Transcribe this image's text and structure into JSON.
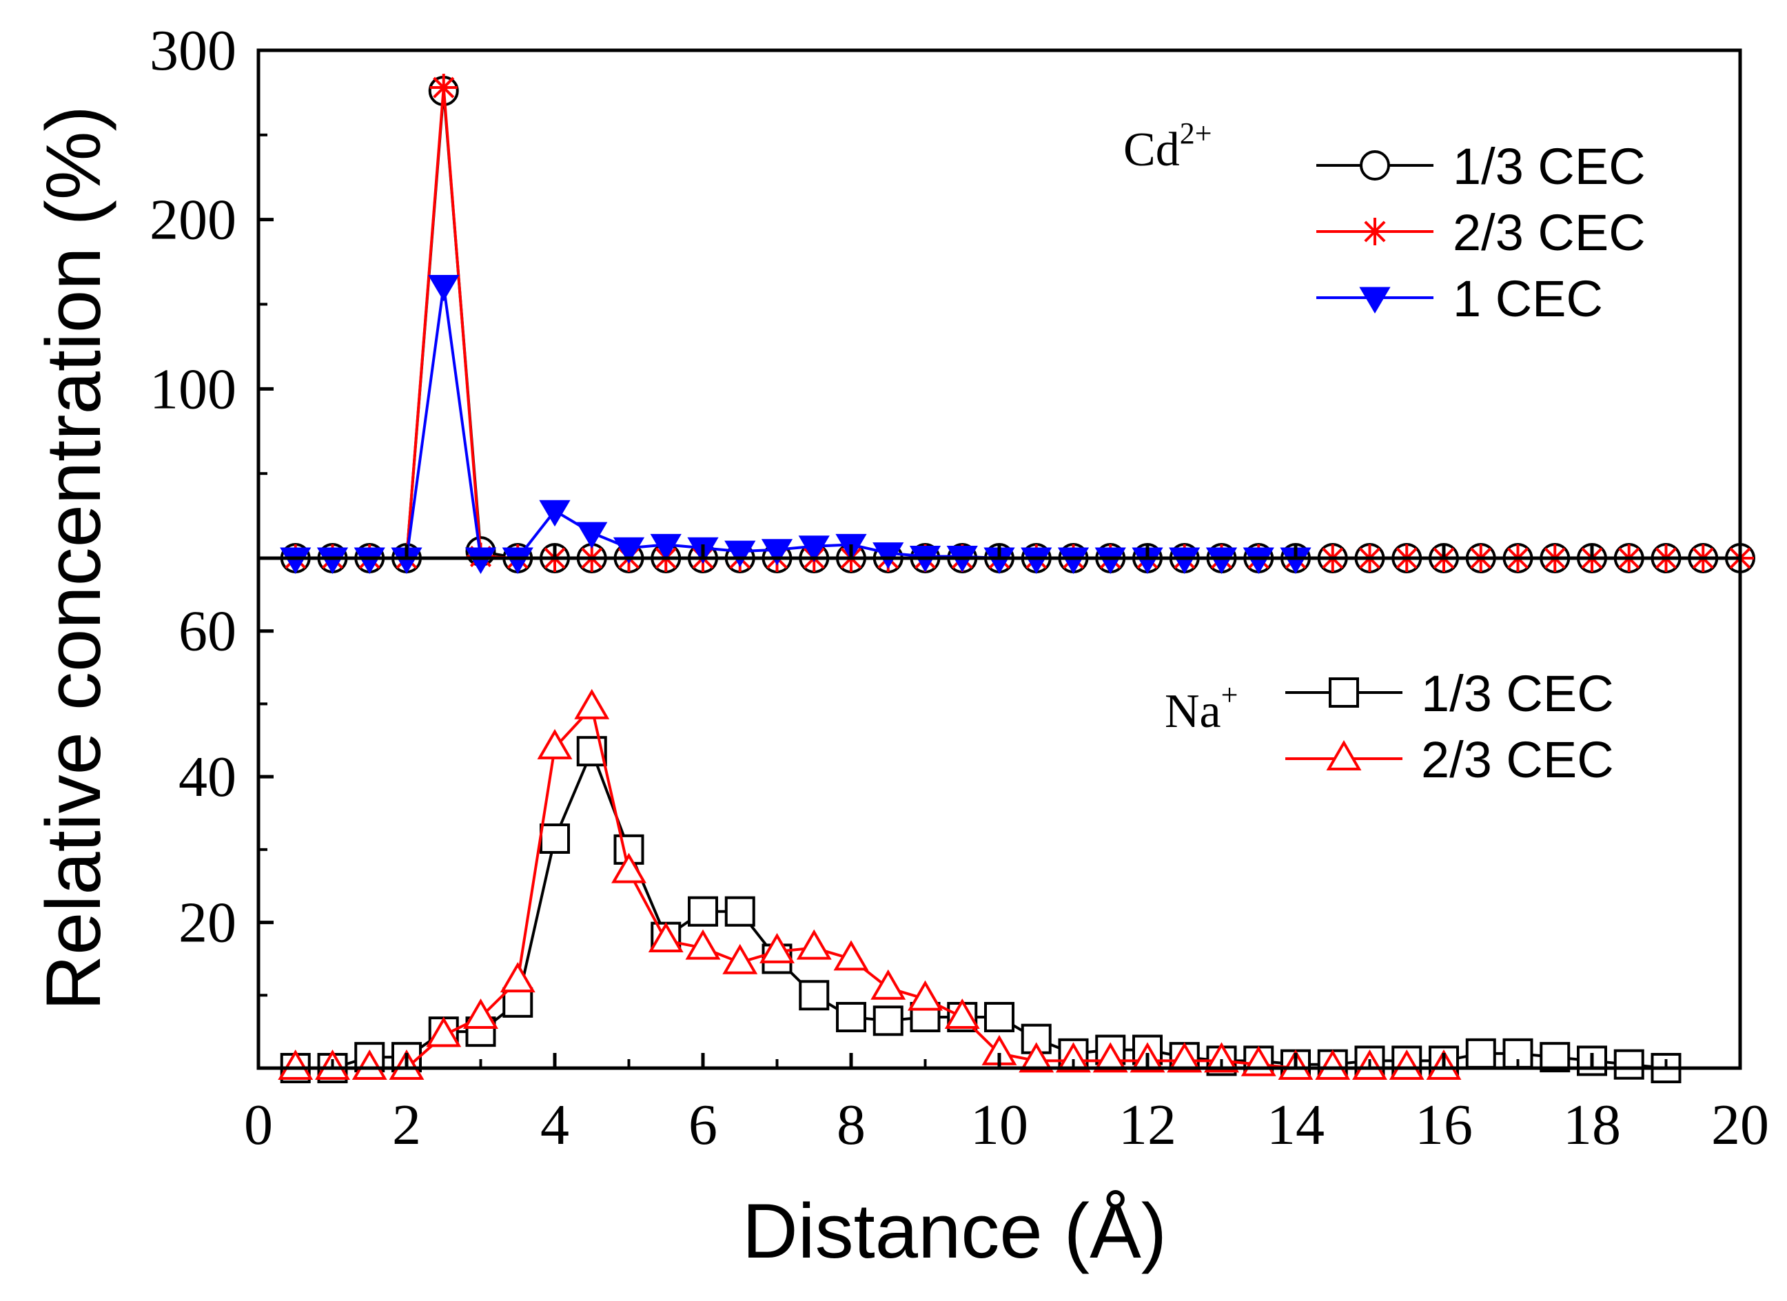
{
  "chart_data": [
    {
      "type": "line",
      "panel": "top",
      "annotation": {
        "base": "Cd",
        "sup": "2+"
      },
      "xlim": [
        0,
        20
      ],
      "ylim": [
        0,
        300
      ],
      "yticks": [
        "100",
        "200",
        "300"
      ],
      "grid": false,
      "legend": "top-right",
      "series": [
        {
          "name": "1/3 CEC",
          "marker": "circle-open",
          "color": "#000000",
          "x": [
            0.5,
            1,
            1.5,
            2,
            2.5,
            3,
            3.5,
            4,
            4.5,
            5,
            5.5,
            6,
            6.5,
            7,
            7.5,
            8,
            8.5,
            9,
            9.5,
            10,
            10.5,
            11,
            11.5,
            12,
            12.5,
            13,
            13.5,
            14,
            14.5,
            15,
            15.5,
            16,
            16.5,
            17,
            17.5,
            18,
            18.5,
            19,
            19.5,
            20
          ],
          "y": [
            0,
            0,
            0,
            0,
            276,
            4,
            0,
            0,
            0,
            0,
            0,
            0,
            0,
            0,
            0,
            0,
            0,
            0,
            0,
            0,
            0,
            0,
            0,
            0,
            0,
            0,
            0,
            0,
            0,
            0,
            0,
            0,
            0,
            0,
            0,
            0,
            0,
            0,
            0,
            0
          ]
        },
        {
          "name": "2/3 CEC",
          "marker": "asterisk",
          "color": "#ff0000",
          "x": [
            0.5,
            1,
            1.5,
            2,
            2.5,
            3,
            3.5,
            4,
            4.5,
            5,
            5.5,
            6,
            6.5,
            7,
            7.5,
            8,
            8.5,
            9,
            9.5,
            10,
            10.5,
            11,
            11.5,
            12,
            12.5,
            13,
            13.5,
            14,
            14.5,
            15,
            15.5,
            16,
            16.5,
            17,
            17.5,
            18,
            18.5,
            19,
            19.5,
            20
          ],
          "y": [
            0,
            0,
            0,
            0,
            278,
            1,
            0,
            0,
            0,
            0,
            0,
            0,
            0,
            0,
            0,
            0,
            0,
            0,
            0,
            0,
            0,
            0,
            0,
            0,
            0,
            0,
            0,
            0,
            0,
            0,
            0,
            0,
            0,
            0,
            0,
            0,
            0,
            0,
            0,
            0
          ]
        },
        {
          "name": "1    CEC",
          "marker": "triangle-down-filled",
          "color": "#0000ff",
          "x": [
            0.5,
            1,
            1.5,
            2,
            2.5,
            3,
            3.5,
            4,
            4.5,
            5,
            5.5,
            6,
            6.5,
            7,
            7.5,
            8,
            8.5,
            9,
            9.5,
            10,
            10.5,
            11,
            11.5,
            12,
            12.5,
            13,
            13.5,
            14
          ],
          "y": [
            0,
            0,
            0,
            0,
            161,
            0,
            0,
            28,
            15,
            6,
            8,
            6,
            4,
            5,
            7,
            8,
            3,
            1,
            1,
            0,
            0,
            0,
            0,
            0,
            0,
            0,
            0,
            0
          ]
        }
      ]
    },
    {
      "type": "line",
      "panel": "bottom",
      "annotation": {
        "base": "Na",
        "sup": "+"
      },
      "xlim": [
        0,
        20
      ],
      "ylim": [
        0,
        70
      ],
      "yticks": [
        "20",
        "40",
        "60"
      ],
      "grid": false,
      "legend": "top-right",
      "series": [
        {
          "name": "1/3 CEC",
          "marker": "square-open",
          "color": "#000000",
          "x": [
            0.5,
            1,
            1.5,
            2,
            2.5,
            3,
            3.5,
            4,
            4.5,
            5,
            5.5,
            6,
            6.5,
            7,
            7.5,
            8,
            8.5,
            9,
            9.5,
            10,
            10.5,
            11,
            11.5,
            12,
            12.5,
            13,
            13.5,
            14,
            14.5,
            15,
            15.5,
            16,
            16.5,
            17,
            17.5,
            18,
            18.5,
            19
          ],
          "y": [
            0,
            0,
            1.5,
            1.5,
            5,
            5,
            9,
            31.5,
            43.5,
            30,
            18,
            21.5,
            21.5,
            15,
            10,
            7,
            6.5,
            7,
            7,
            7,
            4,
            2,
            2.5,
            2.5,
            1.5,
            1,
            1,
            0.5,
            0.5,
            1,
            1,
            1,
            2,
            2,
            1.5,
            1,
            0.5,
            0
          ]
        },
        {
          "name": "2/3 CEC",
          "marker": "triangle-up-open",
          "color": "#ff0000",
          "x": [
            0.5,
            1,
            1.5,
            2,
            2.5,
            3,
            3.5,
            4,
            4.5,
            5,
            5.5,
            6,
            6.5,
            7,
            7.5,
            8,
            8.5,
            9,
            9.5,
            10,
            10.5,
            11,
            11.5,
            12,
            12.5,
            13,
            13.5,
            14,
            14.5,
            15,
            15.5,
            16
          ],
          "y": [
            0,
            0,
            0,
            0,
            4.5,
            7,
            12,
            44,
            49.5,
            27,
            17.5,
            16.5,
            14.5,
            16,
            16.5,
            15,
            11,
            9.5,
            7,
            2,
            1,
            1,
            1,
            1,
            1,
            1,
            0.5,
            0,
            0,
            0,
            0,
            0
          ]
        }
      ]
    }
  ],
  "xaxis": {
    "label": "Distance (Å)",
    "ticks": [
      "0",
      "2",
      "4",
      "6",
      "8",
      "10",
      "12",
      "14",
      "16",
      "18",
      "20"
    ]
  },
  "yaxis_label": "Relative concentration (%)"
}
